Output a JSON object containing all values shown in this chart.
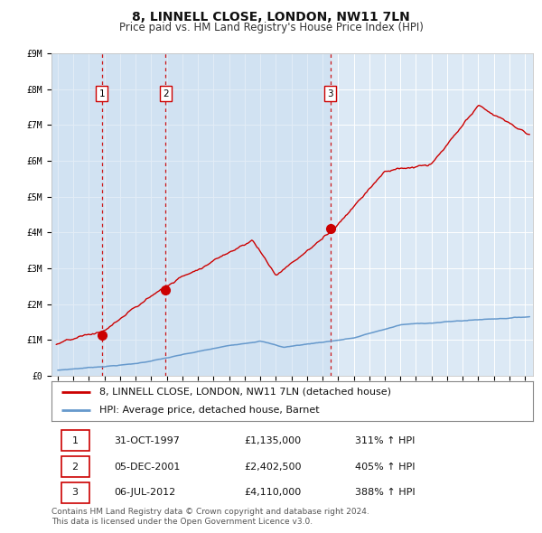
{
  "title": "8, LINNELL CLOSE, LONDON, NW11 7LN",
  "subtitle": "Price paid vs. HM Land Registry's House Price Index (HPI)",
  "bg_color": "#dce9f5",
  "fig_bg_color": "#ffffff",
  "grid_color": "#ffffff",
  "ylim": [
    0,
    9000000
  ],
  "yticks": [
    0,
    1000000,
    2000000,
    3000000,
    4000000,
    5000000,
    6000000,
    7000000,
    8000000,
    9000000
  ],
  "ytick_labels": [
    "£0",
    "£1M",
    "£2M",
    "£3M",
    "£4M",
    "£5M",
    "£6M",
    "£7M",
    "£8M",
    "£9M"
  ],
  "xlim_start": 1994.6,
  "xlim_end": 2025.5,
  "sale_dates": [
    1997.833,
    2001.917,
    2012.5
  ],
  "sale_prices": [
    1135000,
    2402500,
    4110000
  ],
  "sale_labels": [
    "1",
    "2",
    "3"
  ],
  "vline_color": "#cc0000",
  "red_line_color": "#cc0000",
  "blue_line_color": "#6699cc",
  "legend_labels": [
    "8, LINNELL CLOSE, LONDON, NW11 7LN (detached house)",
    "HPI: Average price, detached house, Barnet"
  ],
  "table_entries": [
    {
      "num": "1",
      "date": "31-OCT-1997",
      "price": "£1,135,000",
      "hpi": "311% ↑ HPI"
    },
    {
      "num": "2",
      "date": "05-DEC-2001",
      "price": "£2,402,500",
      "hpi": "405% ↑ HPI"
    },
    {
      "num": "3",
      "date": "06-JUL-2012",
      "price": "£4,110,000",
      "hpi": "388% ↑ HPI"
    }
  ],
  "footnote": "Contains HM Land Registry data © Crown copyright and database right 2024.\nThis data is licensed under the Open Government Licence v3.0.",
  "title_fontsize": 10,
  "subtitle_fontsize": 8.5,
  "tick_fontsize": 7,
  "legend_fontsize": 8,
  "table_fontsize": 8,
  "footnote_fontsize": 6.5
}
